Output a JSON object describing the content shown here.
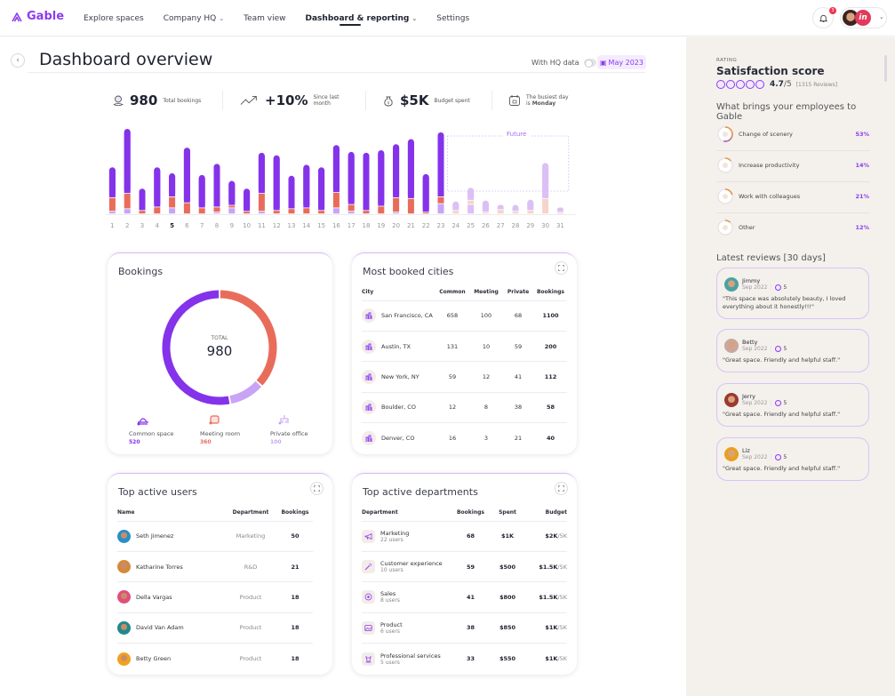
{
  "brand": {
    "name": "Gable",
    "accent": "#8a3cf0"
  },
  "nav": {
    "items": [
      {
        "label": "Explore spaces",
        "dropdown": false,
        "active": false
      },
      {
        "label": "Company HQ",
        "dropdown": true,
        "active": false
      },
      {
        "label": "Team view",
        "dropdown": false,
        "active": false
      },
      {
        "label": "Dashboard & reporting",
        "dropdown": true,
        "active": true
      },
      {
        "label": "Settings",
        "dropdown": false,
        "active": false
      }
    ],
    "notifications_count": "3",
    "account_icon": "in"
  },
  "page": {
    "title": "Dashboard overview",
    "hq_toggle_label": "With HQ data",
    "hq_toggle_on": false,
    "date": "May 2023"
  },
  "stats": {
    "total_bookings": {
      "value": "980",
      "label": "Total bookings"
    },
    "growth": {
      "value": "+10%",
      "label_line1": "Since last",
      "label_line2": "month"
    },
    "budget": {
      "value": "$5K",
      "label": "Budget spent"
    },
    "busiest": {
      "line1": "The busiest day",
      "line2_prefix": "is ",
      "day": "Monday"
    }
  },
  "chart_data": {
    "type": "bar",
    "stacked": true,
    "title": "",
    "xlabel": "",
    "ylabel": "",
    "categories": [
      "1",
      "2",
      "3",
      "4",
      "5",
      "6",
      "7",
      "8",
      "9",
      "10",
      "11",
      "12",
      "13",
      "14",
      "15",
      "16",
      "17",
      "18",
      "19",
      "20",
      "21",
      "22",
      "23",
      "24",
      "25",
      "26",
      "27",
      "28",
      "29",
      "30",
      "31"
    ],
    "highlighted_category": "5",
    "future_from": "24",
    "future_label": "Future",
    "series": [
      {
        "name": "Private office",
        "color": "#c8a4f5",
        "future_color": "#dcc0f7",
        "values": [
          3,
          6,
          0,
          0,
          7,
          0,
          0,
          2,
          7,
          0,
          3,
          0,
          0,
          0,
          0,
          7,
          3,
          0,
          0,
          2,
          0,
          0,
          12,
          0,
          11,
          0,
          0,
          0,
          0,
          0,
          0
        ]
      },
      {
        "name": "Meeting room",
        "color": "#e96c5b",
        "future_color": "#f7d4ca",
        "values": [
          16,
          18,
          4,
          8,
          13,
          13,
          7,
          6,
          3,
          3,
          21,
          4,
          6,
          7,
          4,
          18,
          8,
          4,
          9,
          17,
          18,
          2,
          8,
          4,
          5,
          2,
          5,
          3,
          4,
          18,
          2
        ]
      },
      {
        "name": "Common space",
        "color": "#8433ea",
        "future_color": "#dbc0f5",
        "values": [
          36,
          76,
          26,
          47,
          28,
          65,
          39,
          51,
          29,
          27,
          48,
          65,
          39,
          51,
          51,
          56,
          62,
          68,
          66,
          63,
          70,
          45,
          76,
          11,
          15,
          14,
          6,
          8,
          13,
          42,
          6
        ]
      }
    ],
    "ylim": [
      0,
      100
    ]
  },
  "bookings_card": {
    "title": "Bookings",
    "total_label": "TOTAL",
    "total_value": "980",
    "chart_data": {
      "type": "pie",
      "donut": true,
      "slices": [
        {
          "label": "Common space",
          "value": 520,
          "color": "#8433ea"
        },
        {
          "label": "Meeting room",
          "value": 360,
          "color": "#e96c5b"
        },
        {
          "label": "Private office",
          "value": 100,
          "color": "#c8a4f5"
        }
      ]
    },
    "legend": [
      {
        "label": "Common space",
        "value": "520",
        "color": "#8433ea",
        "icon": "common-space-icon"
      },
      {
        "label": "Meeting room",
        "value": "360",
        "color": "#e96c5b",
        "icon": "meeting-room-icon"
      },
      {
        "label": "Private office",
        "value": "100",
        "color": "#c8a4f5",
        "icon": "private-office-icon"
      }
    ]
  },
  "cities_card": {
    "title": "Most booked cities",
    "columns": [
      "City",
      "Common",
      "Meeting",
      "Private",
      "Bookings"
    ],
    "rows": [
      {
        "city": "San Francisco, CA",
        "common": "658",
        "meeting": "100",
        "private": "68",
        "bookings": "1100"
      },
      {
        "city": "Austin, TX",
        "common": "131",
        "meeting": "10",
        "private": "59",
        "bookings": "200"
      },
      {
        "city": "New York, NY",
        "common": "59",
        "meeting": "12",
        "private": "41",
        "bookings": "112"
      },
      {
        "city": "Boulder, CO",
        "common": "12",
        "meeting": "8",
        "private": "38",
        "bookings": "58"
      },
      {
        "city": "Denver, CO",
        "common": "16",
        "meeting": "3",
        "private": "21",
        "bookings": "40"
      }
    ]
  },
  "users_card": {
    "title": "Top active users",
    "columns": [
      "Name",
      "Department",
      "Bookings"
    ],
    "rows": [
      {
        "name": "Seth Jimenez",
        "department": "Marketing",
        "bookings": "50",
        "avatar_color": "#2a8fc4"
      },
      {
        "name": "Katharine Torres",
        "department": "R&D",
        "bookings": "21",
        "avatar_color": "#d48a3a"
      },
      {
        "name": "Della Vargas",
        "department": "Product",
        "bookings": "18",
        "avatar_color": "#e0507a"
      },
      {
        "name": "David Van Adam",
        "department": "Product",
        "bookings": "18",
        "avatar_color": "#1f8a8a"
      },
      {
        "name": "Betty Green",
        "department": "Product",
        "bookings": "18",
        "avatar_color": "#f0a21f"
      }
    ]
  },
  "departments_card": {
    "title": "Top active departments",
    "columns": [
      "Department",
      "Bookings",
      "Spent",
      "Budget"
    ],
    "rows": [
      {
        "name": "Marketing",
        "users": "22 users",
        "bookings": "68",
        "spent": "$1K",
        "budget": "$2K",
        "budget_total": "/5K",
        "icon": "megaphone-icon"
      },
      {
        "name": "Customer experience",
        "users": "10 users",
        "bookings": "59",
        "spent": "$500",
        "budget": "$1.5K",
        "budget_total": "/5K",
        "icon": "magic-wand-icon"
      },
      {
        "name": "Sales",
        "users": "8 users",
        "bookings": "41",
        "spent": "$800",
        "budget": "$1.5K",
        "budget_total": "/5K",
        "icon": "target-icon"
      },
      {
        "name": "Product",
        "users": "6 users",
        "bookings": "38",
        "spent": "$850",
        "budget": "$1K",
        "budget_total": "/5K",
        "icon": "image-icon"
      },
      {
        "name": "Professional services",
        "users": "5 users",
        "bookings": "33",
        "spent": "$550",
        "budget": "$1K",
        "budget_total": "/5K",
        "icon": "chess-rook-icon"
      }
    ]
  },
  "sidebar": {
    "kicker": "RATING",
    "title": "Satisfaction score",
    "score": "4.7",
    "score_max": "/5",
    "reviews_count": "[1315 Reviews]",
    "reasons_title": "What brings your employees to Gable",
    "reasons": [
      {
        "label": "Change of scenery",
        "percent": "53%",
        "value": 53
      },
      {
        "label": "Increase productivity",
        "percent": "14%",
        "value": 14
      },
      {
        "label": "Work with colleagues",
        "percent": "21%",
        "value": 21
      },
      {
        "label": "Other",
        "percent": "12%",
        "value": 12
      }
    ],
    "latest_title": "Latest reviews [30 days]",
    "reviews": [
      {
        "name": "Jimmy",
        "date": "Sep 2022",
        "rating": "5",
        "text": "\"This space was absolutely beauty, I loved everything about it honestly!!!\"",
        "avatar_color": "#4aa3a0"
      },
      {
        "name": "Betty",
        "date": "Sep 2022",
        "rating": "5",
        "text": "\"Great space. Friendly and helpful staff.\"",
        "avatar_color": "#c9a7a0"
      },
      {
        "name": "Jerry",
        "date": "Sep 2022",
        "rating": "5",
        "text": "\"Great space. Friendly and helpful staff.\"",
        "avatar_color": "#9a3a30"
      },
      {
        "name": "Liz",
        "date": "Sep 2022",
        "rating": "5",
        "text": "\"Great space. Friendly and helpful staff.\"",
        "avatar_color": "#e8a020"
      }
    ]
  }
}
